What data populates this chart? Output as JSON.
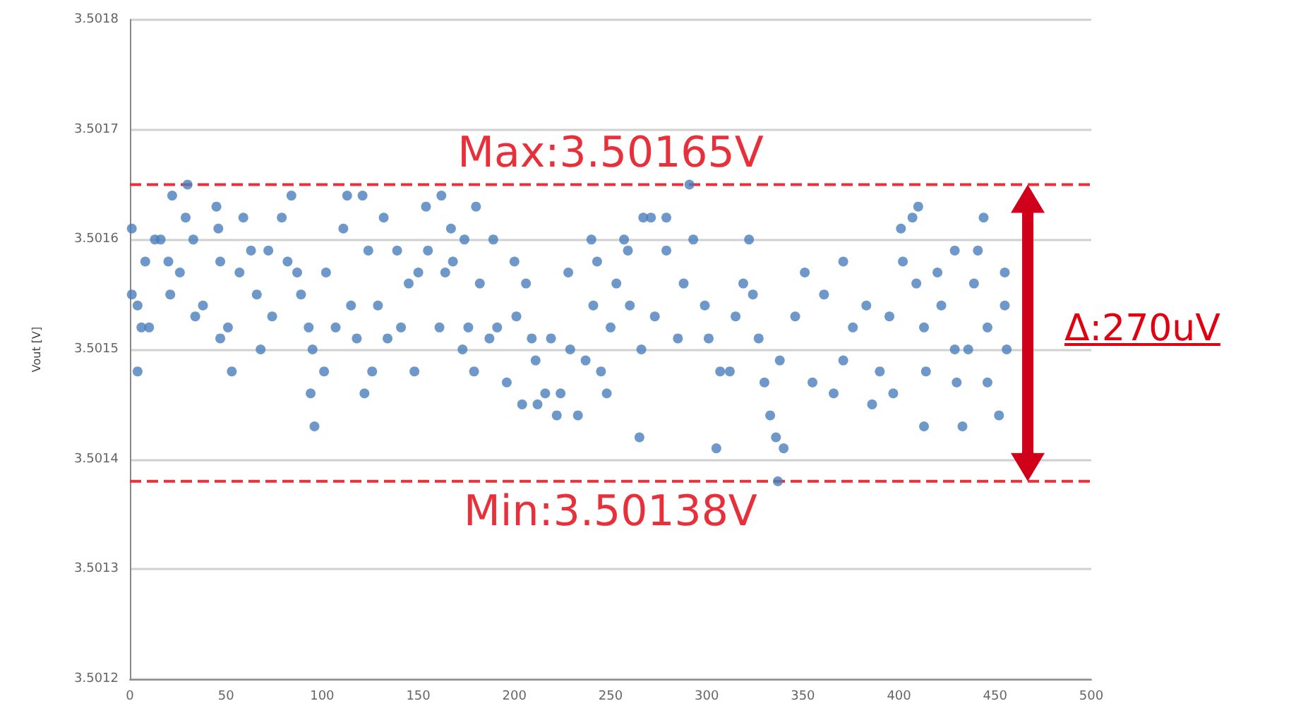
{
  "chart_data": {
    "type": "scatter",
    "ylabel": "Vout [V]",
    "x": [
      1,
      1,
      4,
      4,
      6,
      10,
      8,
      13,
      16,
      20,
      22,
      21,
      30,
      29,
      26,
      33,
      34,
      38,
      45,
      46,
      47,
      47,
      53,
      51,
      59,
      57,
      63,
      68,
      66,
      72,
      74,
      79,
      84,
      82,
      87,
      89,
      93,
      95,
      94,
      96,
      101,
      102,
      107,
      111,
      113,
      115,
      118,
      121,
      122,
      124,
      126,
      129,
      132,
      134,
      139,
      141,
      145,
      148,
      150,
      154,
      155,
      161,
      162,
      164,
      167,
      168,
      173,
      174,
      176,
      179,
      180,
      182,
      187,
      189,
      191,
      196,
      200,
      201,
      204,
      206,
      209,
      211,
      212,
      216,
      219,
      222,
      224,
      228,
      229,
      233,
      237,
      240,
      241,
      243,
      245,
      248,
      250,
      253,
      257,
      260,
      265,
      266,
      267,
      259,
      271,
      279,
      279,
      273,
      285,
      288,
      291,
      293,
      299,
      301,
      305,
      307,
      312,
      315,
      319,
      322,
      324,
      327,
      330,
      333,
      336,
      337,
      340,
      338,
      346,
      351,
      355,
      361,
      366,
      371,
      371,
      376,
      383,
      386,
      390,
      397,
      395,
      401,
      402,
      407,
      410,
      409,
      413,
      413,
      414,
      420,
      422,
      429,
      429,
      430,
      433,
      436,
      439,
      441,
      444,
      446,
      446,
      452,
      455,
      455,
      456
    ],
    "series": [
      {
        "color": "#4a7ebb",
        "values": [
          3.50161,
          3.50155,
          3.50154,
          3.50148,
          3.50152,
          3.50152,
          3.50158,
          3.5016,
          3.5016,
          3.50158,
          3.50164,
          3.50155,
          3.50165,
          3.50162,
          3.50157,
          3.5016,
          3.50153,
          3.50154,
          3.50163,
          3.50161,
          3.50158,
          3.50151,
          3.50148,
          3.50152,
          3.50162,
          3.50157,
          3.50159,
          3.5015,
          3.50155,
          3.50159,
          3.50153,
          3.50162,
          3.50164,
          3.50158,
          3.50157,
          3.50155,
          3.50152,
          3.5015,
          3.50146,
          3.50143,
          3.50148,
          3.50157,
          3.50152,
          3.50161,
          3.50164,
          3.50154,
          3.50151,
          3.50164,
          3.50146,
          3.50159,
          3.50148,
          3.50154,
          3.50162,
          3.50151,
          3.50159,
          3.50152,
          3.50156,
          3.50148,
          3.50157,
          3.50163,
          3.50159,
          3.50152,
          3.50164,
          3.50157,
          3.50161,
          3.50158,
          3.5015,
          3.5016,
          3.50152,
          3.50148,
          3.50163,
          3.50156,
          3.50151,
          3.5016,
          3.50152,
          3.50147,
          3.50158,
          3.50153,
          3.50145,
          3.50156,
          3.50151,
          3.50149,
          3.50145,
          3.50146,
          3.50151,
          3.50144,
          3.50146,
          3.50157,
          3.5015,
          3.50144,
          3.50149,
          3.5016,
          3.50154,
          3.50158,
          3.50148,
          3.50146,
          3.50152,
          3.50156,
          3.5016,
          3.50154,
          3.50142,
          3.5015,
          3.50162,
          3.50159,
          3.50162,
          3.50162,
          3.50159,
          3.50153,
          3.50151,
          3.50156,
          3.50165,
          3.5016,
          3.50154,
          3.50151,
          3.50141,
          3.50148,
          3.50148,
          3.50153,
          3.50156,
          3.5016,
          3.50155,
          3.50151,
          3.50147,
          3.50144,
          3.50142,
          3.50138,
          3.50141,
          3.50149,
          3.50153,
          3.50157,
          3.50147,
          3.50155,
          3.50146,
          3.50158,
          3.50149,
          3.50152,
          3.50154,
          3.50145,
          3.50148,
          3.50146,
          3.50153,
          3.50161,
          3.50158,
          3.50162,
          3.50163,
          3.50156,
          3.50152,
          3.50143,
          3.50148,
          3.50157,
          3.50154,
          3.50159,
          3.5015,
          3.50147,
          3.50143,
          3.5015,
          3.50156,
          3.50159,
          3.50162,
          3.50152,
          3.50147,
          3.50144,
          3.50157,
          3.50154,
          3.5015
        ]
      }
    ],
    "xlim": [
      0,
      500
    ],
    "xticks": [
      0,
      50,
      100,
      150,
      200,
      250,
      300,
      350,
      400,
      450,
      500
    ],
    "ylim": [
      3.5012,
      3.5018
    ],
    "yticks": [
      3.5012,
      3.5013,
      3.5014,
      3.5015,
      3.5016,
      3.5017,
      3.5018
    ],
    "grid": "y",
    "marker": "circle",
    "ref_lines": [
      {
        "axis": "y",
        "value": 3.50165,
        "label": "Max:3.50165V",
        "color": "#e8303a",
        "line_style": "dashed"
      },
      {
        "axis": "y",
        "value": 3.50138,
        "label": "Min:3.50138V",
        "color": "#e8303a",
        "line_style": "dashed"
      }
    ],
    "annotations": [
      "Δ:270uV"
    ]
  }
}
